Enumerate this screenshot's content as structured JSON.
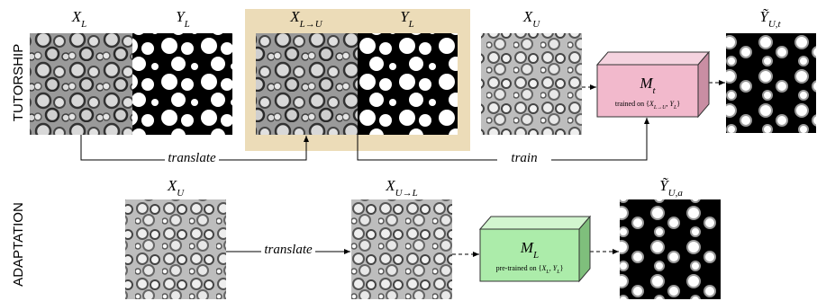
{
  "row_labels": [
    "TUTORSHIP",
    "ADAPTATION"
  ],
  "tutorship": {
    "images": [
      {
        "main": "X",
        "sub": "L"
      },
      {
        "main": "Y",
        "sub": "L"
      },
      {
        "main": "X",
        "sub": "L→U"
      },
      {
        "main": "Y",
        "sub": "L"
      },
      {
        "main": "X",
        "sub": "U"
      },
      {
        "main": "Ỹ",
        "sub": "U,t"
      }
    ],
    "model": {
      "main": "M",
      "sub": "t",
      "caption": [
        {
          "t": "trained on {"
        },
        {
          "t": "X",
          "sub": "L→U"
        },
        {
          "t": ", "
        },
        {
          "t": "Y",
          "sub": "L"
        },
        {
          "t": "}"
        }
      ]
    },
    "arrows": [
      "translate",
      "train"
    ]
  },
  "adaptation": {
    "images": [
      {
        "main": "X",
        "sub": "U"
      },
      {
        "main": "X",
        "sub": "U→L"
      },
      {
        "main": "Ỹ",
        "sub": "U,a"
      }
    ],
    "model": {
      "main": "M",
      "sub": "L",
      "caption": [
        {
          "t": "pre-trained on {"
        },
        {
          "t": "X",
          "sub": "L"
        },
        {
          "t": ", "
        },
        {
          "t": "Y",
          "sub": "L"
        },
        {
          "t": "}"
        }
      ]
    },
    "arrows": [
      "translate"
    ]
  }
}
